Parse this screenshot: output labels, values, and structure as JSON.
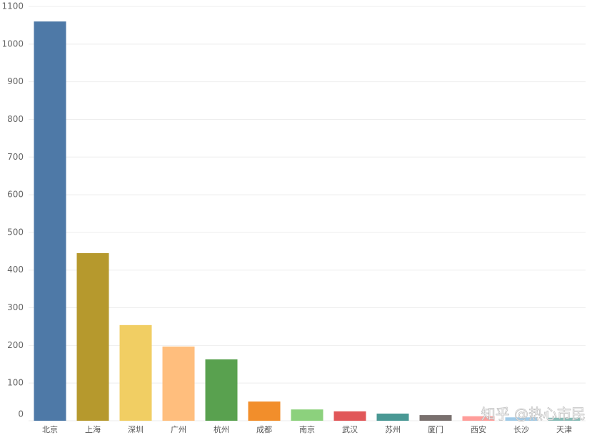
{
  "chart_data": {
    "type": "bar",
    "categories": [
      "北京",
      "上海",
      "深圳",
      "广州",
      "杭州",
      "成都",
      "南京",
      "武汉",
      "苏州",
      "厦门",
      "西安",
      "长沙",
      "天津"
    ],
    "values": [
      1060,
      445,
      254,
      197,
      163,
      51,
      30,
      25,
      19,
      15,
      12,
      9,
      8
    ],
    "colors": [
      "#4e79a7",
      "#b6992d",
      "#f1ce63",
      "#ffbe7d",
      "#59a14f",
      "#f28e2b",
      "#8cd17d",
      "#e15759",
      "#499894",
      "#79706e",
      "#ff9d9a",
      "#a0cbe8",
      "#86bcb6"
    ],
    "ylim": [
      0,
      1100
    ],
    "yticks": [
      0,
      100,
      200,
      300,
      400,
      500,
      600,
      700,
      800,
      900,
      1000,
      1100
    ],
    "grid": true,
    "watermark": "知乎 @热心市民"
  }
}
